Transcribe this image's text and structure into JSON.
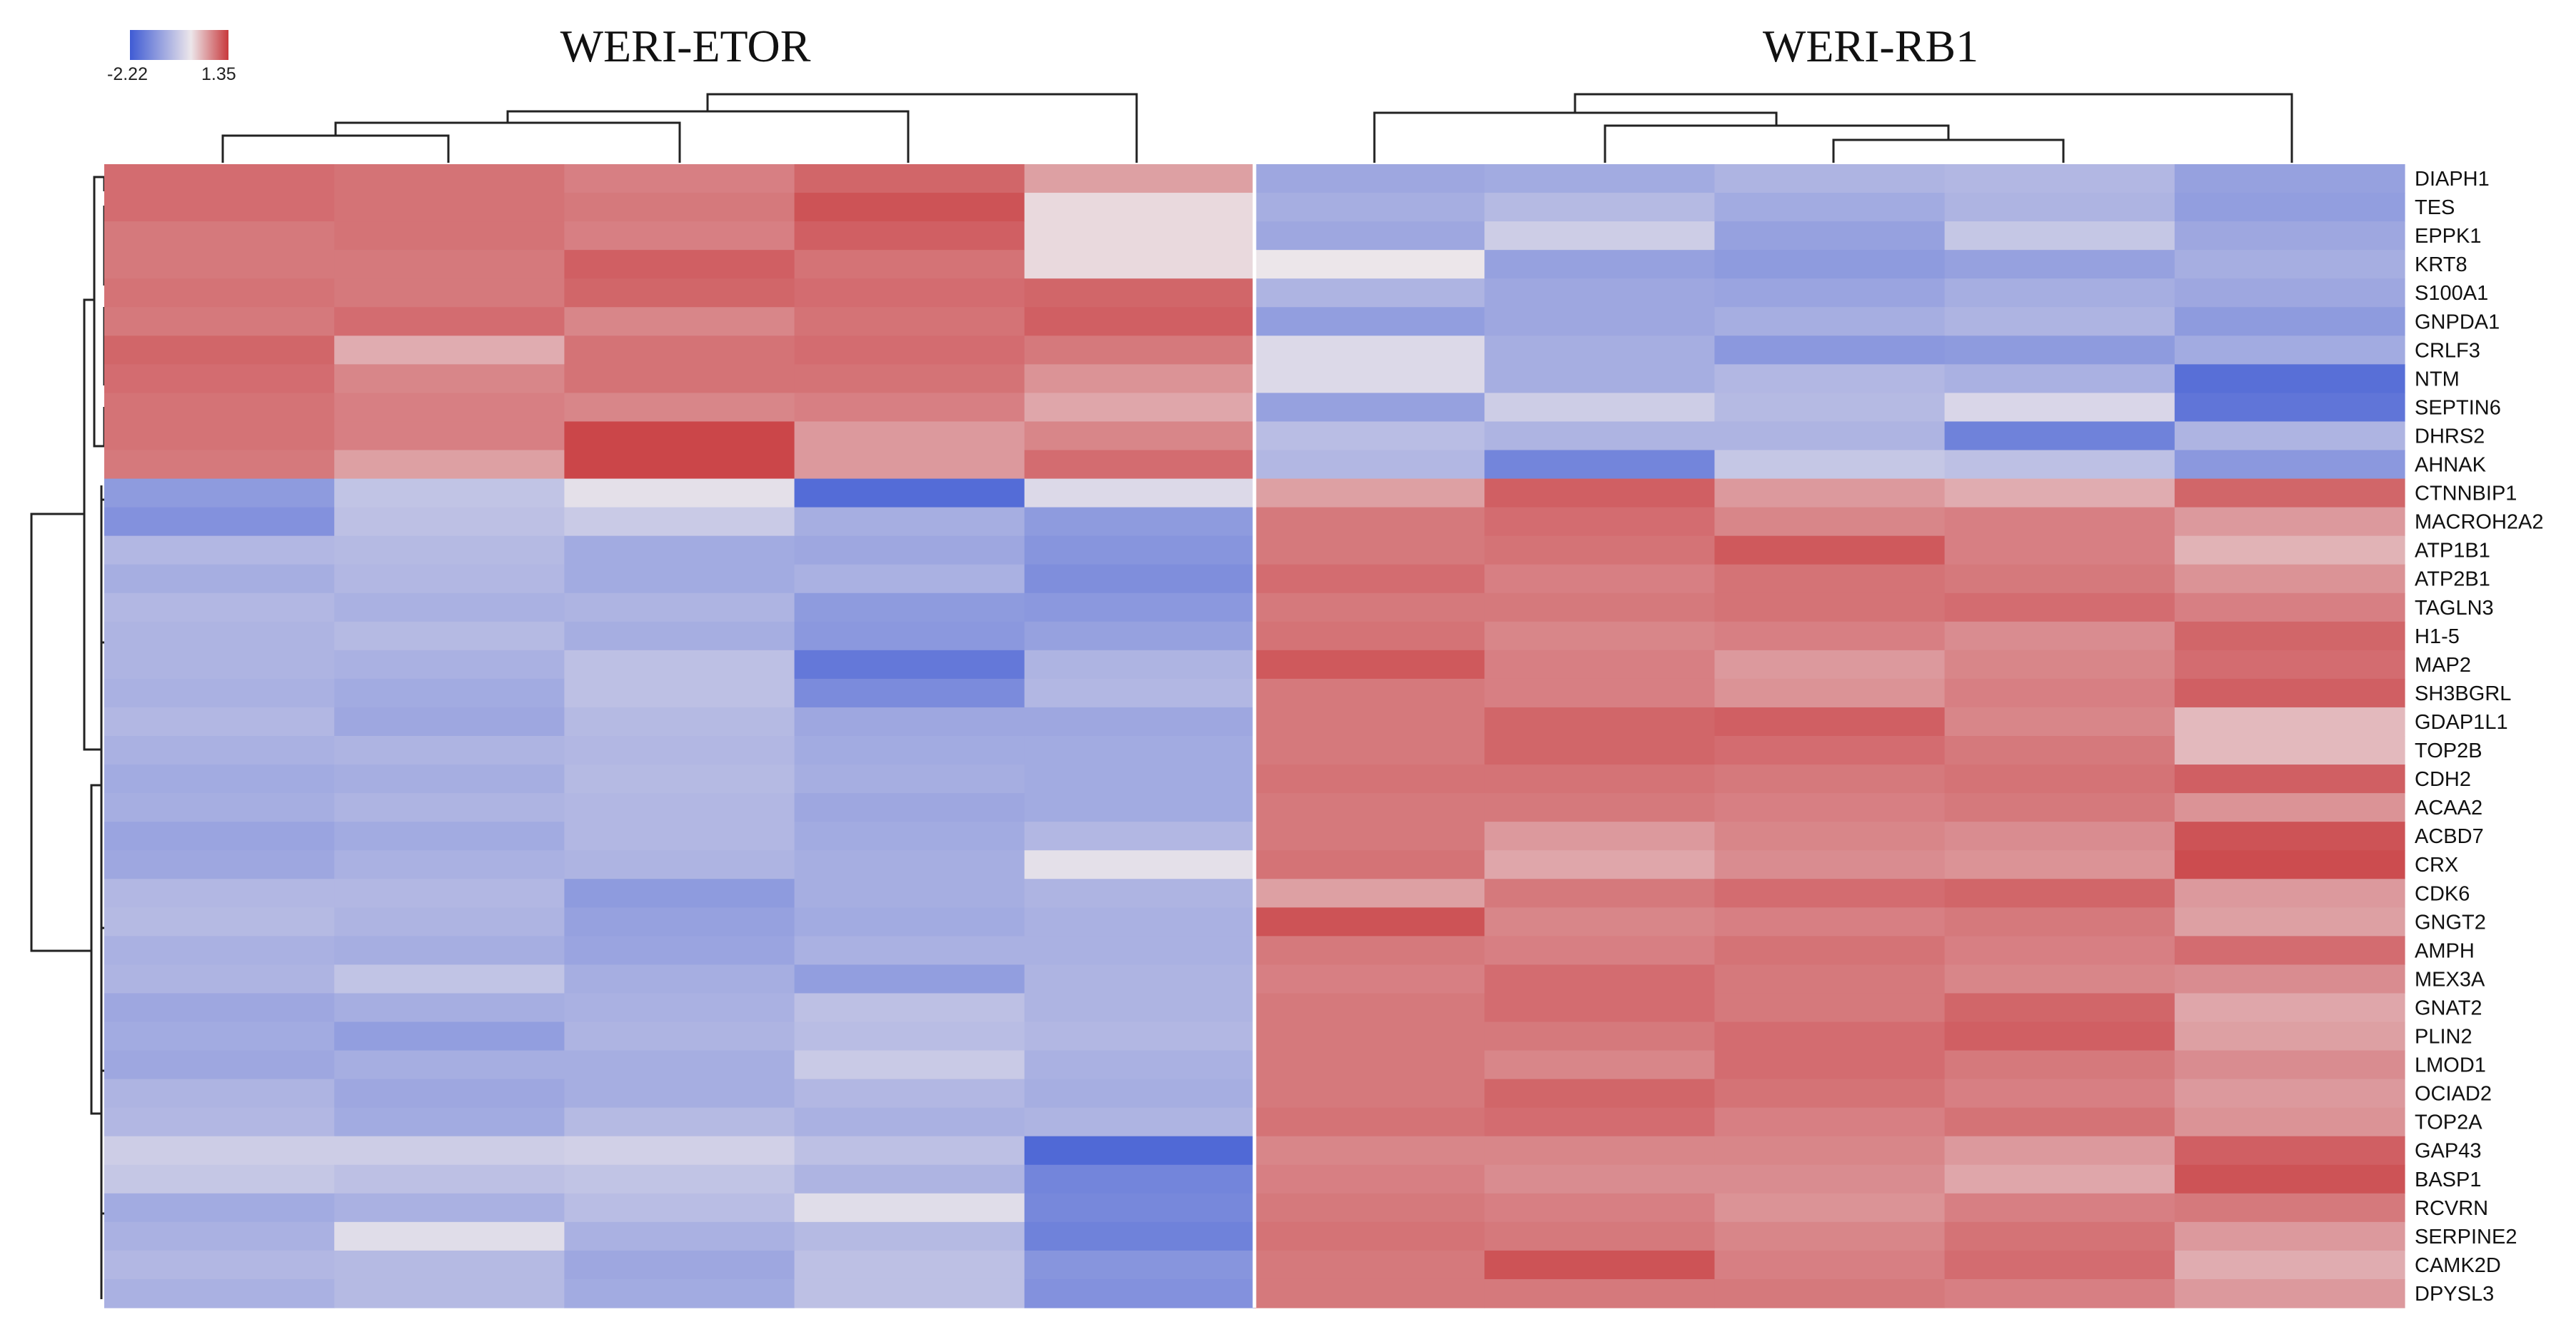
{
  "chart_data": {
    "type": "heatmap",
    "title": "",
    "column_groups": [
      {
        "name": "WERI-ETOR",
        "n_samples": 5
      },
      {
        "name": "WERI-RB1",
        "n_samples": 5
      }
    ],
    "color_scale": {
      "min": -2.22,
      "max": 1.35,
      "min_label": "-2.22",
      "max_label": "1.35",
      "low_color": "#3f5bd4",
      "mid_color": "#ece6ea",
      "high_color": "#c8393c"
    },
    "rows": [
      "DIAPH1",
      "TES",
      "EPPK1",
      "KRT8",
      "S100A1",
      "GNPDA1",
      "CRLF3",
      "NTM",
      "SEPTIN6",
      "DHRS2",
      "AHNAK",
      "CTNNBIP1",
      "MACROH2A2",
      "ATP1B1",
      "ATP2B1",
      "TAGLN3",
      "H1-5",
      "MAP2",
      "SH3BGRL",
      "GDAP1L1",
      "TOP2B",
      "CDH2",
      "ACAA2",
      "ACBD7",
      "CRX",
      "CDK6",
      "GNGT2",
      "AMPH",
      "MEX3A",
      "GNAT2",
      "PLIN2",
      "LMOD1",
      "OCIAD2",
      "TOP2A",
      "GAP43",
      "BASP1",
      "RCVRN",
      "SERPINE2",
      "CAMK2D",
      "DPYSL3"
    ],
    "values": [
      [
        0.95,
        0.9,
        0.8,
        1.0,
        0.55,
        -1.0,
        -0.95,
        -0.8,
        -0.75,
        -1.1
      ],
      [
        0.95,
        0.9,
        0.85,
        1.15,
        0.1,
        -0.9,
        -0.7,
        -0.95,
        -0.8,
        -1.15
      ],
      [
        0.85,
        0.9,
        0.8,
        1.05,
        0.1,
        -1.0,
        -0.4,
        -1.1,
        -0.5,
        -1.0
      ],
      [
        0.85,
        0.85,
        1.05,
        0.9,
        0.1,
        0.0,
        -1.1,
        -1.2,
        -1.1,
        -0.9
      ],
      [
        0.9,
        0.85,
        1.0,
        0.95,
        1.0,
        -0.8,
        -1.0,
        -1.05,
        -0.9,
        -1.0
      ],
      [
        0.85,
        0.95,
        0.75,
        0.9,
        1.05,
        -1.15,
        -1.0,
        -0.9,
        -0.8,
        -1.2
      ],
      [
        1.0,
        0.45,
        0.9,
        0.95,
        0.85,
        -0.2,
        -0.9,
        -1.25,
        -1.2,
        -0.95
      ],
      [
        0.95,
        0.75,
        0.9,
        0.9,
        0.65,
        -0.2,
        -0.9,
        -0.75,
        -0.85,
        -1.9
      ],
      [
        0.9,
        0.8,
        0.75,
        0.8,
        0.5,
        -1.1,
        -0.4,
        -0.7,
        -0.25,
        -1.8
      ],
      [
        0.9,
        0.8,
        1.25,
        0.6,
        0.75,
        -0.65,
        -0.8,
        -0.8,
        -1.6,
        -0.8
      ],
      [
        0.85,
        0.55,
        1.25,
        0.6,
        0.95,
        -0.75,
        -1.55,
        -0.5,
        -0.6,
        -1.25
      ],
      [
        -1.2,
        -0.55,
        -0.1,
        -1.95,
        -0.2,
        0.55,
        1.05,
        0.6,
        0.45,
        1.0
      ],
      [
        -1.35,
        -0.6,
        -0.45,
        -0.9,
        -1.2,
        0.85,
        0.95,
        0.75,
        0.8,
        0.6
      ],
      [
        -0.75,
        -0.7,
        -0.95,
        -1.0,
        -1.3,
        0.85,
        0.9,
        1.1,
        0.8,
        0.4
      ],
      [
        -0.9,
        -0.75,
        -0.95,
        -0.85,
        -1.4,
        0.95,
        0.8,
        0.9,
        0.85,
        0.65
      ],
      [
        -0.75,
        -0.85,
        -0.8,
        -1.2,
        -1.25,
        0.85,
        0.85,
        0.9,
        0.95,
        0.8
      ],
      [
        -0.8,
        -0.7,
        -0.9,
        -1.25,
        -1.1,
        0.9,
        0.75,
        0.8,
        0.7,
        1.0
      ],
      [
        -0.8,
        -0.85,
        -0.6,
        -1.75,
        -0.8,
        1.1,
        0.8,
        0.6,
        0.75,
        0.95
      ],
      [
        -0.85,
        -0.95,
        -0.6,
        -1.45,
        -0.75,
        0.85,
        0.8,
        0.65,
        0.8,
        1.05
      ],
      [
        -0.75,
        -1.0,
        -0.7,
        -1.0,
        -1.0,
        0.85,
        1.0,
        1.05,
        0.75,
        0.35
      ],
      [
        -0.85,
        -0.8,
        -0.75,
        -0.95,
        -0.95,
        0.85,
        1.0,
        0.95,
        0.85,
        0.35
      ],
      [
        -0.95,
        -0.9,
        -0.7,
        -0.9,
        -0.95,
        0.9,
        0.9,
        0.85,
        0.9,
        1.05
      ],
      [
        -0.9,
        -0.8,
        -0.75,
        -1.0,
        -0.95,
        0.85,
        0.85,
        0.8,
        0.85,
        0.65
      ],
      [
        -1.05,
        -0.95,
        -0.75,
        -0.95,
        -0.75,
        0.85,
        0.6,
        0.75,
        0.7,
        1.15
      ],
      [
        -1.0,
        -0.85,
        -0.8,
        -0.9,
        -0.1,
        0.9,
        0.5,
        0.7,
        0.65,
        1.2
      ],
      [
        -0.75,
        -0.75,
        -1.2,
        -0.9,
        -0.8,
        0.55,
        0.85,
        0.95,
        1.0,
        0.6
      ],
      [
        -0.7,
        -0.8,
        -1.1,
        -0.95,
        -0.85,
        1.15,
        0.75,
        0.8,
        0.85,
        0.55
      ],
      [
        -0.85,
        -0.9,
        -1.05,
        -0.85,
        -0.85,
        0.85,
        0.8,
        0.9,
        0.8,
        0.95
      ],
      [
        -0.8,
        -0.55,
        -0.9,
        -1.15,
        -0.8,
        0.8,
        0.95,
        0.85,
        0.75,
        0.7
      ],
      [
        -1.0,
        -0.9,
        -0.85,
        -0.6,
        -0.8,
        0.85,
        0.95,
        0.85,
        1.0,
        0.5
      ],
      [
        -0.95,
        -1.15,
        -0.8,
        -0.65,
        -0.75,
        0.85,
        0.85,
        0.95,
        1.05,
        0.55
      ],
      [
        -1.0,
        -0.9,
        -0.9,
        -0.45,
        -0.85,
        0.85,
        0.75,
        0.95,
        0.85,
        0.7
      ],
      [
        -0.8,
        -1.0,
        -0.9,
        -0.75,
        -0.9,
        0.85,
        1.0,
        0.9,
        0.8,
        0.6
      ],
      [
        -0.75,
        -0.95,
        -0.7,
        -0.85,
        -0.8,
        0.9,
        0.95,
        0.8,
        0.9,
        0.65
      ],
      [
        -0.4,
        -0.4,
        -0.35,
        -0.6,
        -2.0,
        0.75,
        0.75,
        0.75,
        0.6,
        1.05
      ],
      [
        -0.5,
        -0.6,
        -0.55,
        -0.8,
        -1.55,
        0.8,
        0.7,
        0.7,
        0.5,
        1.15
      ],
      [
        -0.95,
        -0.85,
        -0.65,
        -0.15,
        -1.5,
        0.85,
        0.8,
        0.65,
        0.8,
        0.85
      ],
      [
        -0.85,
        -0.15,
        -0.85,
        -0.7,
        -1.6,
        0.9,
        0.85,
        0.75,
        0.9,
        0.6
      ],
      [
        -0.75,
        -0.7,
        -1.0,
        -0.6,
        -1.3,
        0.85,
        1.15,
        0.8,
        0.95,
        0.45
      ],
      [
        -0.85,
        -0.7,
        -0.95,
        -0.6,
        -1.35,
        0.85,
        0.85,
        0.85,
        0.8,
        0.6
      ]
    ]
  }
}
